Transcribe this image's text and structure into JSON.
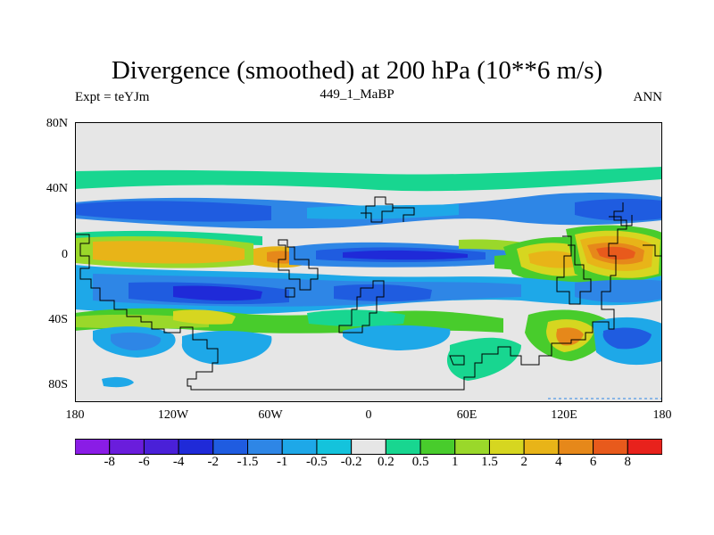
{
  "title": "Divergence (smoothed) at 200 hPa (10**6 m/s)",
  "left_label": "Expt = teYJm",
  "center_label": "449_1_MaBP",
  "right_label": "ANN",
  "lat_labels": [
    "80N",
    "40N",
    "0",
    "40S",
    "80S"
  ],
  "lon_labels": [
    "180",
    "120W",
    "60W",
    "0",
    "60E",
    "120E",
    "180"
  ],
  "colorbar": {
    "colors": [
      "#8a1ce6",
      "#6a1ddc",
      "#4a20d8",
      "#1f2ad8",
      "#1f5ce0",
      "#2e86e6",
      "#1ea8e8",
      "#14c3dc",
      "#e6e6e6",
      "#18d690",
      "#48cc2c",
      "#9ad82a",
      "#d6d620",
      "#e8b418",
      "#e6881a",
      "#e85a1c",
      "#e8221c"
    ],
    "labels": [
      "-8",
      "-6",
      "-4",
      "-2",
      "-1.5",
      "-1",
      "-0.5",
      "-0.2",
      "0.2",
      "0.5",
      "1",
      "1.5",
      "2",
      "4",
      "6",
      "8"
    ]
  }
}
